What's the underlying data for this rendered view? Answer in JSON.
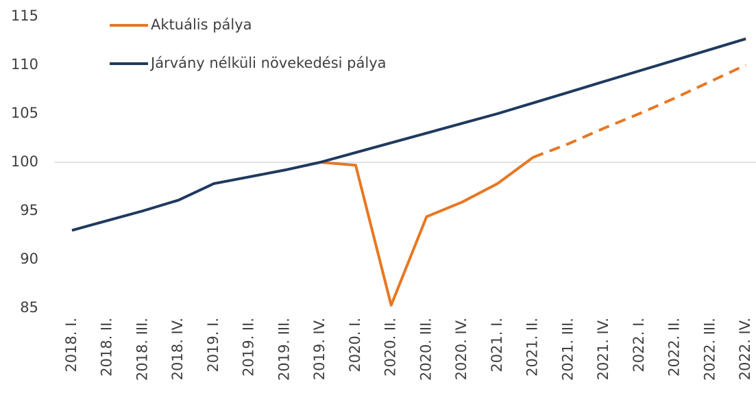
{
  "chart_data": {
    "type": "line",
    "categories": [
      "2018. I.",
      "2018. II.",
      "2018. III.",
      "2018. IV.",
      "2019. I.",
      "2019. II.",
      "2019. III.",
      "2019. IV.",
      "2020. I.",
      "2020. II.",
      "2020. III.",
      "2020. IV.",
      "2021. I.",
      "2021. II.",
      "2021. III.",
      "2021. IV.",
      "2022. I.",
      "2022. II.",
      "2022. III.",
      "2022. IV."
    ],
    "series": [
      {
        "name": "Aktuális pálya",
        "color": "#e87722",
        "dashed_from_category": "2021. II.",
        "values": [
          null,
          null,
          null,
          null,
          null,
          null,
          null,
          100,
          99.7,
          85.3,
          94.4,
          95.9,
          97.8,
          100.5,
          101.9,
          103.5,
          105.0,
          106.6,
          108.3,
          110.0
        ]
      },
      {
        "name": "Járvány nélküli növekedési pálya",
        "color": "#1f3a5f",
        "values": [
          93.0,
          94.0,
          95.0,
          96.1,
          97.8,
          98.5,
          99.2,
          100,
          101.0,
          102.0,
          103.0,
          104.0,
          105.0,
          106.1,
          107.2,
          108.3,
          109.4,
          110.5,
          111.6,
          112.7
        ]
      }
    ],
    "ylim": [
      85,
      115
    ],
    "yticks": [
      85,
      90,
      95,
      100,
      105,
      110,
      115
    ],
    "reference_line": 100,
    "legend": "upper left"
  }
}
